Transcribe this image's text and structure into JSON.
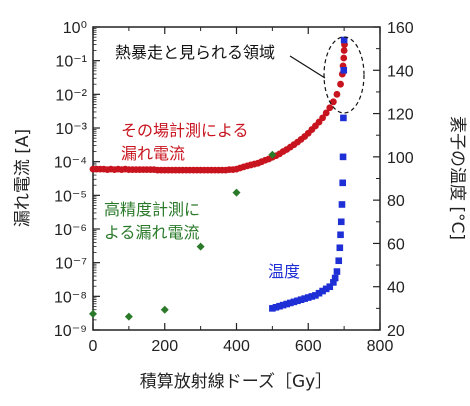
{
  "chart_data": {
    "type": "scatter",
    "xlabel": "積算放射線ドーズ［Gy］",
    "ylabel_left": "漏れ電流 [A]",
    "ylabel_right": "素子の温度 [°C]",
    "xlim": [
      0,
      800
    ],
    "ylim_left": [
      1e-09,
      1
    ],
    "yscale_left": "log",
    "ylim_right": [
      20,
      160
    ],
    "x_ticks": [
      "0",
      "200",
      "400",
      "600",
      "800"
    ],
    "y_left_ticks": [
      "10⁻⁹",
      "10⁻⁸",
      "10⁻⁷",
      "10⁻⁶",
      "10⁻⁵",
      "10⁻⁴",
      "10⁻³",
      "10⁻²",
      "10⁻¹",
      "10⁰"
    ],
    "y_right_ticks": [
      "20",
      "40",
      "60",
      "80",
      "100",
      "120",
      "140",
      "160"
    ],
    "annotations": {
      "region": "熱暴走と見られる領域",
      "insitu": [
        "その場計測による",
        "漏れ電流"
      ],
      "precise": [
        "高精度計測に",
        "よる漏れ電流"
      ],
      "temp": "温度"
    },
    "colors": {
      "insitu": "#c8141e",
      "precise": "#2a7a2a",
      "temp": "#1f2fd6",
      "axes": "#222222"
    },
    "series": [
      {
        "key": "insitu",
        "axis": "left",
        "marker": "circle",
        "points": [
          [
            0,
            6e-05
          ],
          [
            10,
            6e-05
          ],
          [
            20,
            6e-05
          ],
          [
            30,
            6e-05
          ],
          [
            40,
            5.8e-05
          ],
          [
            50,
            6e-05
          ],
          [
            60,
            5.8e-05
          ],
          [
            70,
            6e-05
          ],
          [
            80,
            5.8e-05
          ],
          [
            90,
            6e-05
          ],
          [
            100,
            5.8e-05
          ],
          [
            110,
            5.8e-05
          ],
          [
            120,
            5.8e-05
          ],
          [
            130,
            5.8e-05
          ],
          [
            140,
            5.8e-05
          ],
          [
            150,
            5.8e-05
          ],
          [
            160,
            5.8e-05
          ],
          [
            170,
            5.8e-05
          ],
          [
            180,
            5.6e-05
          ],
          [
            190,
            5.6e-05
          ],
          [
            200,
            5.6e-05
          ],
          [
            210,
            5.6e-05
          ],
          [
            220,
            5.6e-05
          ],
          [
            230,
            5.6e-05
          ],
          [
            240,
            5.6e-05
          ],
          [
            250,
            5.6e-05
          ],
          [
            260,
            5.6e-05
          ],
          [
            270,
            5.6e-05
          ],
          [
            280,
            5.6e-05
          ],
          [
            290,
            5.6e-05
          ],
          [
            300,
            5.6e-05
          ],
          [
            310,
            5.6e-05
          ],
          [
            320,
            5.6e-05
          ],
          [
            330,
            5.6e-05
          ],
          [
            340,
            5.6e-05
          ],
          [
            350,
            5.6e-05
          ],
          [
            360,
            5.6e-05
          ],
          [
            370,
            5.6e-05
          ],
          [
            380,
            5.8e-05
          ],
          [
            390,
            5.8e-05
          ],
          [
            400,
            6e-05
          ],
          [
            410,
            6.5e-05
          ],
          [
            420,
            7e-05
          ],
          [
            430,
            7.5e-05
          ],
          [
            440,
            8e-05
          ],
          [
            450,
            8.5e-05
          ],
          [
            460,
            9e-05
          ],
          [
            470,
            0.0001
          ],
          [
            480,
            0.00011
          ],
          [
            490,
            0.00012
          ],
          [
            500,
            0.000135
          ],
          [
            510,
            0.00015
          ],
          [
            520,
            0.00017
          ],
          [
            530,
            0.0002
          ],
          [
            540,
            0.00023
          ],
          [
            550,
            0.00027
          ],
          [
            560,
            0.00032
          ],
          [
            570,
            0.00038
          ],
          [
            580,
            0.00046
          ],
          [
            590,
            0.00056
          ],
          [
            600,
            0.0007
          ],
          [
            610,
            0.0009
          ],
          [
            620,
            0.00115
          ],
          [
            630,
            0.0015
          ],
          [
            640,
            0.002
          ],
          [
            650,
            0.0028
          ],
          [
            660,
            0.004
          ],
          [
            670,
            0.006
          ],
          [
            680,
            0.01
          ],
          [
            690,
            0.02
          ],
          [
            695,
            0.04
          ],
          [
            697,
            0.07
          ],
          [
            699,
            0.12
          ],
          [
            700,
            0.2
          ],
          [
            701,
            0.3
          ]
        ]
      },
      {
        "key": "precise",
        "axis": "left",
        "marker": "diamond",
        "points": [
          [
            0,
            3e-09
          ],
          [
            100,
            2.5e-09
          ],
          [
            200,
            4e-09
          ],
          [
            300,
            3e-07
          ],
          [
            400,
            1.2e-05
          ],
          [
            500,
            0.00016
          ]
        ]
      },
      {
        "key": "temp",
        "axis": "right",
        "marker": "square",
        "points": [
          [
            500,
            30
          ],
          [
            510,
            30.5
          ],
          [
            520,
            31
          ],
          [
            530,
            31.5
          ],
          [
            540,
            32
          ],
          [
            550,
            32.5
          ],
          [
            560,
            33
          ],
          [
            570,
            33.5
          ],
          [
            580,
            34
          ],
          [
            590,
            34.5
          ],
          [
            600,
            35
          ],
          [
            610,
            35.5
          ],
          [
            620,
            36
          ],
          [
            630,
            37
          ],
          [
            640,
            38
          ],
          [
            650,
            39
          ],
          [
            660,
            40
          ],
          [
            670,
            42
          ],
          [
            675,
            44
          ],
          [
            680,
            47
          ],
          [
            685,
            52
          ],
          [
            688,
            58
          ],
          [
            690,
            64
          ],
          [
            692,
            70
          ],
          [
            694,
            78
          ],
          [
            696,
            88
          ],
          [
            697,
            100
          ],
          [
            698,
            118
          ],
          [
            699,
            140
          ],
          [
            700,
            154
          ]
        ]
      }
    ]
  }
}
